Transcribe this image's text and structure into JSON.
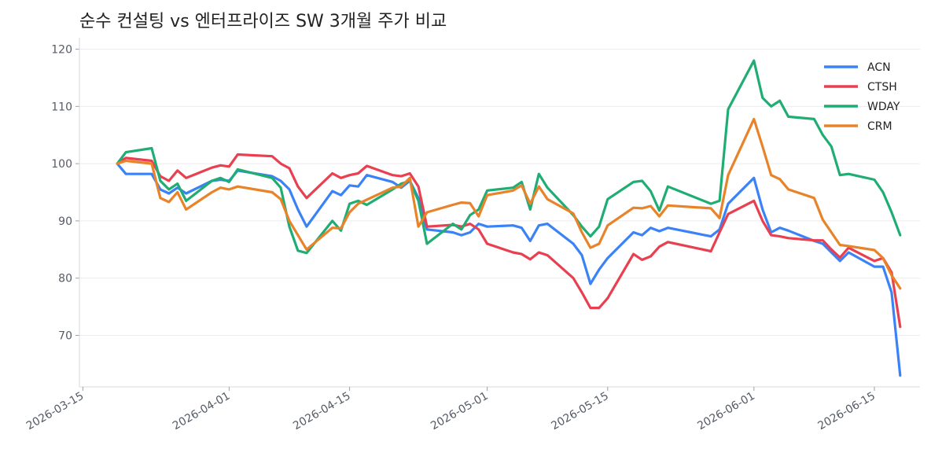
{
  "chart_data": {
    "type": "line",
    "title": "순수 컨설팅 vs 엔터프라이즈 SW 3개월 주가 비교",
    "xlabel": "",
    "ylabel": "",
    "ylim": [
      61,
      122
    ],
    "xlim": [
      "2026-03-15",
      "2026-06-20"
    ],
    "grid": "y",
    "legend_position": "top-right",
    "x_ticks": [
      "2026-03-15",
      "2026-04-01",
      "2026-04-15",
      "2026-05-01",
      "2026-05-15",
      "2026-06-01",
      "2026-06-15"
    ],
    "y_ticks": [
      70,
      80,
      90,
      100,
      110,
      120
    ],
    "series": [
      {
        "name": "ACN",
        "color": "#3b82f6",
        "points": [
          [
            "2026-03-19",
            100
          ],
          [
            "2026-03-20",
            98.2
          ],
          [
            "2026-03-23",
            98.2
          ],
          [
            "2026-03-24",
            95.5
          ],
          [
            "2026-03-25",
            94.8
          ],
          [
            "2026-03-26",
            95.8
          ],
          [
            "2026-03-27",
            94.8
          ],
          [
            "2026-03-30",
            97.0
          ],
          [
            "2026-03-31",
            97.2
          ],
          [
            "2026-04-01",
            97.0
          ],
          [
            "2026-04-02",
            98.8
          ],
          [
            "2026-04-06",
            97.8
          ],
          [
            "2026-04-07",
            97.0
          ],
          [
            "2026-04-08",
            95.5
          ],
          [
            "2026-04-09",
            92.0
          ],
          [
            "2026-04-10",
            89.0
          ],
          [
            "2026-04-13",
            95.2
          ],
          [
            "2026-04-14",
            94.5
          ],
          [
            "2026-04-15",
            96.2
          ],
          [
            "2026-04-16",
            96.0
          ],
          [
            "2026-04-17",
            98.0
          ],
          [
            "2026-04-20",
            96.8
          ],
          [
            "2026-04-21",
            95.8
          ],
          [
            "2026-04-22",
            97.0
          ],
          [
            "2026-04-23",
            94.0
          ],
          [
            "2026-04-24",
            88.5
          ],
          [
            "2026-04-27",
            88.0
          ],
          [
            "2026-04-28",
            87.5
          ],
          [
            "2026-04-29",
            88.0
          ],
          [
            "2026-04-30",
            89.5
          ],
          [
            "2026-05-01",
            89.0
          ],
          [
            "2026-05-04",
            89.2
          ],
          [
            "2026-05-05",
            88.8
          ],
          [
            "2026-05-06",
            86.5
          ],
          [
            "2026-05-07",
            89.2
          ],
          [
            "2026-05-08",
            89.5
          ],
          [
            "2026-05-11",
            86.0
          ],
          [
            "2026-05-12",
            84.0
          ],
          [
            "2026-05-13",
            79.0
          ],
          [
            "2026-05-14",
            81.5
          ],
          [
            "2026-05-15",
            83.5
          ],
          [
            "2026-05-18",
            88.0
          ],
          [
            "2026-05-19",
            87.5
          ],
          [
            "2026-05-20",
            88.8
          ],
          [
            "2026-05-21",
            88.2
          ],
          [
            "2026-05-22",
            88.8
          ],
          [
            "2026-05-27",
            87.3
          ],
          [
            "2026-05-28",
            88.5
          ],
          [
            "2026-05-29",
            93.0
          ],
          [
            "2026-06-01",
            97.5
          ],
          [
            "2026-06-02",
            92.0
          ],
          [
            "2026-06-03",
            88.0
          ],
          [
            "2026-06-04",
            88.8
          ],
          [
            "2026-06-05",
            88.3
          ],
          [
            "2026-06-08",
            86.5
          ],
          [
            "2026-06-09",
            86.0
          ],
          [
            "2026-06-10",
            84.5
          ],
          [
            "2026-06-11",
            83.0
          ],
          [
            "2026-06-12",
            84.5
          ],
          [
            "2026-06-15",
            82.0
          ],
          [
            "2026-06-16",
            82.0
          ],
          [
            "2026-06-17",
            77.5
          ],
          [
            "2026-06-18",
            63.0
          ]
        ]
      },
      {
        "name": "CTSH",
        "color": "#e84050",
        "points": [
          [
            "2026-03-19",
            100
          ],
          [
            "2026-03-20",
            101.0
          ],
          [
            "2026-03-23",
            100.5
          ],
          [
            "2026-03-24",
            97.8
          ],
          [
            "2026-03-25",
            97.0
          ],
          [
            "2026-03-26",
            98.8
          ],
          [
            "2026-03-27",
            97.5
          ],
          [
            "2026-03-30",
            99.3
          ],
          [
            "2026-03-31",
            99.7
          ],
          [
            "2026-04-01",
            99.5
          ],
          [
            "2026-04-02",
            101.6
          ],
          [
            "2026-04-06",
            101.3
          ],
          [
            "2026-04-07",
            100.0
          ],
          [
            "2026-04-08",
            99.2
          ],
          [
            "2026-04-09",
            96.0
          ],
          [
            "2026-04-10",
            94.0
          ],
          [
            "2026-04-13",
            98.3
          ],
          [
            "2026-04-14",
            97.5
          ],
          [
            "2026-04-15",
            98.0
          ],
          [
            "2026-04-16",
            98.3
          ],
          [
            "2026-04-17",
            99.6
          ],
          [
            "2026-04-20",
            98.0
          ],
          [
            "2026-04-21",
            97.8
          ],
          [
            "2026-04-22",
            98.3
          ],
          [
            "2026-04-23",
            96.0
          ],
          [
            "2026-04-24",
            89.0
          ],
          [
            "2026-04-27",
            89.3
          ],
          [
            "2026-04-28",
            89.0
          ],
          [
            "2026-04-29",
            89.5
          ],
          [
            "2026-04-30",
            88.5
          ],
          [
            "2026-05-01",
            86.0
          ],
          [
            "2026-05-04",
            84.5
          ],
          [
            "2026-05-05",
            84.2
          ],
          [
            "2026-05-06",
            83.3
          ],
          [
            "2026-05-07",
            84.5
          ],
          [
            "2026-05-08",
            84.0
          ],
          [
            "2026-05-11",
            80.0
          ],
          [
            "2026-05-12",
            77.5
          ],
          [
            "2026-05-13",
            74.8
          ],
          [
            "2026-05-14",
            74.8
          ],
          [
            "2026-05-15",
            76.5
          ],
          [
            "2026-05-18",
            84.2
          ],
          [
            "2026-05-19",
            83.2
          ],
          [
            "2026-05-20",
            83.8
          ],
          [
            "2026-05-21",
            85.5
          ],
          [
            "2026-05-22",
            86.3
          ],
          [
            "2026-05-27",
            84.7
          ],
          [
            "2026-05-28",
            88.0
          ],
          [
            "2026-05-29",
            91.2
          ],
          [
            "2026-06-01",
            93.5
          ],
          [
            "2026-06-02",
            90.0
          ],
          [
            "2026-06-03",
            87.5
          ],
          [
            "2026-06-04",
            87.3
          ],
          [
            "2026-06-05",
            87.0
          ],
          [
            "2026-06-08",
            86.6
          ],
          [
            "2026-06-09",
            86.6
          ],
          [
            "2026-06-10",
            85.0
          ],
          [
            "2026-06-11",
            83.6
          ],
          [
            "2026-06-12",
            85.3
          ],
          [
            "2026-06-15",
            83.0
          ],
          [
            "2026-06-16",
            83.5
          ],
          [
            "2026-06-17",
            81.0
          ],
          [
            "2026-06-18",
            71.5
          ]
        ]
      },
      {
        "name": "WDAY",
        "color": "#20ad74",
        "points": [
          [
            "2026-03-19",
            100
          ],
          [
            "2026-03-20",
            102.0
          ],
          [
            "2026-03-23",
            102.7
          ],
          [
            "2026-03-24",
            97.0
          ],
          [
            "2026-03-25",
            95.5
          ],
          [
            "2026-03-26",
            96.5
          ],
          [
            "2026-03-27",
            93.5
          ],
          [
            "2026-03-30",
            97.0
          ],
          [
            "2026-03-31",
            97.5
          ],
          [
            "2026-04-01",
            96.8
          ],
          [
            "2026-04-02",
            99.0
          ],
          [
            "2026-04-06",
            97.5
          ],
          [
            "2026-04-07",
            95.8
          ],
          [
            "2026-04-08",
            89.0
          ],
          [
            "2026-04-09",
            84.8
          ],
          [
            "2026-04-10",
            84.4
          ],
          [
            "2026-04-13",
            90.0
          ],
          [
            "2026-04-14",
            88.3
          ],
          [
            "2026-04-15",
            93.0
          ],
          [
            "2026-04-16",
            93.5
          ],
          [
            "2026-04-17",
            92.8
          ],
          [
            "2026-04-20",
            95.5
          ],
          [
            "2026-04-21",
            96.5
          ],
          [
            "2026-04-22",
            97.0
          ],
          [
            "2026-04-23",
            93.5
          ],
          [
            "2026-04-24",
            86.0
          ],
          [
            "2026-04-27",
            89.5
          ],
          [
            "2026-04-28",
            88.5
          ],
          [
            "2026-04-29",
            91.0
          ],
          [
            "2026-04-30",
            92.0
          ],
          [
            "2026-05-01",
            95.3
          ],
          [
            "2026-05-04",
            95.8
          ],
          [
            "2026-05-05",
            96.8
          ],
          [
            "2026-05-06",
            92.0
          ],
          [
            "2026-05-07",
            98.2
          ],
          [
            "2026-05-08",
            95.8
          ],
          [
            "2026-05-11",
            91.0
          ],
          [
            "2026-05-12",
            89.0
          ],
          [
            "2026-05-13",
            87.3
          ],
          [
            "2026-05-14",
            89.0
          ],
          [
            "2026-05-15",
            93.8
          ],
          [
            "2026-05-18",
            96.8
          ],
          [
            "2026-05-19",
            97.0
          ],
          [
            "2026-05-20",
            95.2
          ],
          [
            "2026-05-21",
            91.8
          ],
          [
            "2026-05-22",
            96.0
          ],
          [
            "2026-05-27",
            93.0
          ],
          [
            "2026-05-28",
            93.5
          ],
          [
            "2026-05-29",
            109.5
          ],
          [
            "2026-06-01",
            118.0
          ],
          [
            "2026-06-02",
            111.5
          ],
          [
            "2026-06-03",
            110.0
          ],
          [
            "2026-06-04",
            111.0
          ],
          [
            "2026-06-05",
            108.2
          ],
          [
            "2026-06-08",
            107.8
          ],
          [
            "2026-06-09",
            105.0
          ],
          [
            "2026-06-10",
            103.0
          ],
          [
            "2026-06-11",
            98.0
          ],
          [
            "2026-06-12",
            98.2
          ],
          [
            "2026-06-15",
            97.2
          ],
          [
            "2026-06-16",
            95.0
          ],
          [
            "2026-06-17",
            91.5
          ],
          [
            "2026-06-18",
            87.5
          ]
        ]
      },
      {
        "name": "CRM",
        "color": "#e8832a",
        "points": [
          [
            "2026-03-19",
            100
          ],
          [
            "2026-03-20",
            100.5
          ],
          [
            "2026-03-23",
            100.0
          ],
          [
            "2026-03-24",
            94.0
          ],
          [
            "2026-03-25",
            93.3
          ],
          [
            "2026-03-26",
            95.0
          ],
          [
            "2026-03-27",
            92.0
          ],
          [
            "2026-03-30",
            95.0
          ],
          [
            "2026-03-31",
            95.8
          ],
          [
            "2026-04-01",
            95.5
          ],
          [
            "2026-04-02",
            96.0
          ],
          [
            "2026-04-06",
            95.0
          ],
          [
            "2026-04-07",
            93.8
          ],
          [
            "2026-04-08",
            90.0
          ],
          [
            "2026-04-09",
            87.5
          ],
          [
            "2026-04-10",
            85.0
          ],
          [
            "2026-04-13",
            88.8
          ],
          [
            "2026-04-14",
            88.7
          ],
          [
            "2026-04-15",
            91.5
          ],
          [
            "2026-04-16",
            93.0
          ],
          [
            "2026-04-17",
            93.7
          ],
          [
            "2026-04-20",
            95.8
          ],
          [
            "2026-04-21",
            96.0
          ],
          [
            "2026-04-22",
            97.5
          ],
          [
            "2026-04-23",
            89.0
          ],
          [
            "2026-04-24",
            91.5
          ],
          [
            "2026-04-27",
            92.8
          ],
          [
            "2026-04-28",
            93.2
          ],
          [
            "2026-04-29",
            93.1
          ],
          [
            "2026-04-30",
            90.8
          ],
          [
            "2026-05-01",
            94.5
          ],
          [
            "2026-05-04",
            95.3
          ],
          [
            "2026-05-05",
            96.2
          ],
          [
            "2026-05-06",
            93.0
          ],
          [
            "2026-05-07",
            96.0
          ],
          [
            "2026-05-08",
            93.8
          ],
          [
            "2026-05-11",
            91.3
          ],
          [
            "2026-05-12",
            88.0
          ],
          [
            "2026-05-13",
            85.3
          ],
          [
            "2026-05-14",
            86.0
          ],
          [
            "2026-05-15",
            89.2
          ],
          [
            "2026-05-18",
            92.3
          ],
          [
            "2026-05-19",
            92.2
          ],
          [
            "2026-05-20",
            92.6
          ],
          [
            "2026-05-21",
            90.8
          ],
          [
            "2026-05-22",
            92.7
          ],
          [
            "2026-05-27",
            92.2
          ],
          [
            "2026-05-28",
            90.5
          ],
          [
            "2026-05-29",
            98.0
          ],
          [
            "2026-06-01",
            107.8
          ],
          [
            "2026-06-02",
            103.0
          ],
          [
            "2026-06-03",
            98.0
          ],
          [
            "2026-06-04",
            97.3
          ],
          [
            "2026-06-05",
            95.5
          ],
          [
            "2026-06-08",
            94.0
          ],
          [
            "2026-06-09",
            90.2
          ],
          [
            "2026-06-10",
            88.0
          ],
          [
            "2026-06-11",
            85.8
          ],
          [
            "2026-06-12",
            85.6
          ],
          [
            "2026-06-15",
            84.9
          ],
          [
            "2026-06-16",
            83.5
          ],
          [
            "2026-06-17",
            80.5
          ],
          [
            "2026-06-18",
            78.2
          ]
        ]
      }
    ]
  }
}
